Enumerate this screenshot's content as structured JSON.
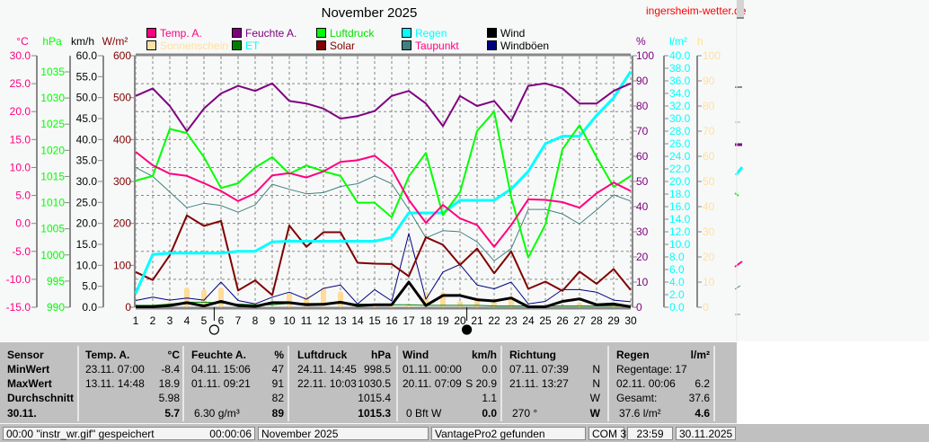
{
  "header": {
    "title": "November 2025",
    "site": "ingersheim-wetter.de"
  },
  "legend": [
    {
      "label": "Temp. A.",
      "color": "#ff0080",
      "text_color": "#ff0080"
    },
    {
      "label": "Feuchte A.",
      "color": "#800080",
      "text_color": "#800080"
    },
    {
      "label": "Luftdruck",
      "color": "#00ff00",
      "text_color": "#00e000"
    },
    {
      "label": "Regen",
      "color": "#00ffff",
      "text_color": "#00ffff"
    },
    {
      "label": "Wind",
      "color": "#000000",
      "text_color": "#000000"
    },
    {
      "label": "Sonnenschein",
      "color": "#ffe0a0",
      "text_color": "#ffe0a0"
    },
    {
      "label": "ET",
      "color": "#008000",
      "text_color": "#00ffff"
    },
    {
      "label": "Solar",
      "color": "#800000",
      "text_color": "#800000"
    },
    {
      "label": "Taupunkt",
      "color": "#408080",
      "text_color": "#ff0080"
    },
    {
      "label": "Windböen",
      "color": "#000080",
      "text_color": "#000000"
    }
  ],
  "chart_data": {
    "type": "line",
    "title": "November 2025",
    "x": [
      1,
      2,
      3,
      4,
      5,
      6,
      7,
      8,
      9,
      10,
      11,
      12,
      13,
      14,
      15,
      16,
      17,
      18,
      19,
      20,
      21,
      22,
      23,
      24,
      25,
      26,
      27,
      28,
      29,
      30
    ],
    "xlim": [
      1,
      30
    ],
    "axes": {
      "temp": {
        "unit": "°C",
        "color": "#ff0080",
        "range": [
          -15,
          30
        ],
        "ticks": [
          "30.0",
          "25.0",
          "20.0",
          "15.0",
          "10.0",
          "5.0",
          "0.0",
          "-5.0",
          "-10.0",
          "-15.0"
        ]
      },
      "press": {
        "unit": "hPa",
        "color": "#00ff00",
        "range": [
          990,
          1035
        ],
        "ticks": [
          "1035",
          "1030",
          "1025",
          "1020",
          "1015",
          "1010",
          "1005",
          "1000",
          "995",
          "990"
        ]
      },
      "wind": {
        "unit": "km/h",
        "color": "#000000",
        "range": [
          0,
          60
        ],
        "ticks": [
          "60.0",
          "55.0",
          "50.0",
          "45.0",
          "40.0",
          "35.0",
          "30.0",
          "25.0",
          "20.0",
          "15.0",
          "10.0",
          "5.0",
          "0.0"
        ]
      },
      "solar": {
        "unit": "W/m²",
        "color": "#800000",
        "range": [
          0,
          600
        ],
        "ticks": [
          "600",
          "500",
          "400",
          "300",
          "200",
          "100",
          "0"
        ]
      },
      "hum": {
        "unit": "%",
        "color": "#800080",
        "range": [
          0,
          100
        ],
        "ticks": [
          "100",
          "90",
          "80",
          "70",
          "60",
          "50",
          "40",
          "30",
          "20",
          "10",
          "0"
        ]
      },
      "rain": {
        "unit": "l/m²",
        "color": "#00ffff",
        "range": [
          0,
          40
        ],
        "ticks": [
          "40.0",
          "38.0",
          "36.0",
          "34.0",
          "32.0",
          "30.0",
          "28.0",
          "26.0",
          "24.0",
          "22.0",
          "20.0",
          "18.0",
          "16.0",
          "14.0",
          "12.0",
          "10.0",
          "8.0",
          "6.0",
          "4.0",
          "2.0",
          "0.0"
        ]
      },
      "sun": {
        "unit": "h",
        "color": "#ffe0a0",
        "range": [
          0,
          100
        ],
        "ticks": [
          "100",
          "90",
          "80",
          "70",
          "60",
          "50",
          "40",
          "30",
          "20",
          "10",
          "0"
        ]
      }
    },
    "series": [
      {
        "name": "Sonnenschein",
        "axis": "sun",
        "kind": "bar",
        "color": "#ffdc9a",
        "values": [
          0,
          0,
          2.1,
          7.9,
          7.1,
          7.9,
          0,
          0,
          0,
          5.9,
          4.5,
          7.9,
          6.3,
          0,
          1.3,
          0.7,
          1.3,
          6.1,
          6.1,
          2.5,
          4.0,
          2.5,
          4.5,
          0,
          0,
          0,
          1.9,
          0,
          1.0,
          0
        ]
      },
      {
        "name": "Taupunkt",
        "axis": "temp",
        "color": "#408080",
        "width": 1,
        "values": [
          10.0,
          8.4,
          5.6,
          2.8,
          3.6,
          3.2,
          2.0,
          3.3,
          7.0,
          6.1,
          5.3,
          5.5,
          6.6,
          7.1,
          8.5,
          7.1,
          2.5,
          -2.6,
          -1.3,
          -1.5,
          -3.3,
          -6.7,
          -4.5,
          2.5,
          2.5,
          1.7,
          -0.1,
          2.4,
          5.1,
          4.0
        ]
      },
      {
        "name": "Windböen",
        "axis": "wind",
        "color": "#000080",
        "width": 1,
        "values": [
          1.6,
          2.4,
          1.7,
          2.2,
          1.7,
          6.0,
          1.6,
          0.8,
          2.4,
          3.6,
          1.9,
          4.5,
          5.3,
          0.8,
          4.2,
          1.5,
          17.6,
          1.9,
          8.4,
          10.2,
          5.3,
          4.4,
          6.0,
          0.8,
          1.4,
          4.2,
          4.2,
          3.6,
          1.7,
          1.3
        ]
      },
      {
        "name": "ET",
        "axis": "rain",
        "color": "#008000",
        "width": 1,
        "values": [
          0.3,
          0.3,
          0.5,
          0.8,
          0.8,
          0.7,
          0.5,
          0.4,
          0.4,
          0.6,
          0.6,
          0.6,
          0.6,
          0.5,
          0.5,
          0.4,
          0.4,
          0.3,
          0.3,
          0.3,
          0.3,
          0.2,
          0.2,
          0.2,
          0.2,
          0.2,
          0.2,
          0.2,
          0.2,
          0.2
        ]
      },
      {
        "name": "Solar",
        "axis": "solar",
        "color": "#800000",
        "width": 2,
        "values": [
          84,
          65,
          124,
          219,
          194,
          206,
          40,
          64,
          29,
          195,
          144,
          179,
          179,
          106,
          104,
          103,
          74,
          167,
          149,
          101,
          140,
          81,
          133,
          44,
          61,
          39,
          85,
          56,
          91,
          41
        ]
      },
      {
        "name": "Regen",
        "axis": "rain",
        "color": "#00ffff",
        "width": 3,
        "values": [
          2.2,
          8.4,
          8.6,
          8.6,
          8.6,
          8.6,
          8.9,
          8.9,
          10.4,
          10.5,
          10.5,
          10.5,
          10.5,
          10.5,
          10.5,
          11.1,
          15.0,
          15.0,
          15.0,
          17.0,
          17.0,
          17.0,
          18.8,
          21.6,
          26.0,
          27.2,
          27.2,
          30.5,
          33.3,
          37.5
        ]
      },
      {
        "name": "Luftdruck",
        "axis": "press",
        "color": "#00ff00",
        "width": 2,
        "values": [
          1014.2,
          1015.1,
          1024.1,
          1023.3,
          1018.7,
          1012.8,
          1013.7,
          1016.7,
          1018.7,
          1015.5,
          1017.1,
          1016.0,
          1015.1,
          1010.0,
          1010.0,
          1007.2,
          1015.0,
          1019.5,
          1007.6,
          1012.0,
          1023.7,
          1027.4,
          1011.0,
          999.5,
          1005.8,
          1020.2,
          1024.8,
          1018.7,
          1013.0,
          1015.1
        ]
      },
      {
        "name": "Temp. A.",
        "axis": "temp",
        "color": "#ff0080",
        "width": 2,
        "values": [
          12.8,
          10.4,
          8.9,
          8.5,
          7.2,
          5.8,
          4.0,
          5.4,
          8.6,
          9.0,
          8.2,
          9.3,
          11.0,
          11.3,
          12.1,
          9.7,
          4.2,
          0.1,
          3.3,
          0.9,
          -0.3,
          -4.2,
          -0.3,
          4.3,
          4.2,
          3.8,
          2.8,
          5.4,
          7.3,
          5.8
        ]
      },
      {
        "name": "Feuchte A.",
        "axis": "hum",
        "color": "#800080",
        "width": 2,
        "values": [
          84,
          87,
          80,
          70,
          79,
          85,
          88,
          86,
          89,
          82,
          81,
          79,
          75,
          76,
          78,
          84,
          86,
          81,
          72,
          84,
          80,
          82,
          74,
          88,
          89,
          87,
          81,
          81,
          86,
          89
        ]
      },
      {
        "name": "Wind",
        "axis": "wind",
        "color": "#000000",
        "width": 3,
        "values": [
          0.1,
          0.1,
          0.4,
          1.1,
          0.3,
          1.4,
          0.4,
          0.2,
          1.1,
          1.1,
          0.6,
          0.7,
          1.2,
          0.4,
          0.6,
          0.6,
          6.0,
          0.4,
          2.8,
          2.8,
          1.8,
          1.5,
          2.2,
          0.1,
          0.1,
          1.4,
          2.0,
          0.6,
          0.8,
          0.1
        ]
      }
    ],
    "moon_phases": [
      {
        "day": 5.6,
        "phase": "full"
      },
      {
        "day": 20.4,
        "phase": "new"
      }
    ],
    "grid": true
  },
  "table": {
    "headers": [
      {
        "label": "Sensor",
        "unit": ""
      },
      {
        "label": "Temp. A.",
        "unit": "°C"
      },
      {
        "label": "Feuchte A.",
        "unit": "%"
      },
      {
        "label": "Luftdruck",
        "unit": "hPa"
      },
      {
        "label": "Wind",
        "unit": "km/h"
      },
      {
        "label": "Richtung",
        "unit": ""
      },
      {
        "label": "Regen",
        "unit": "l/m²"
      }
    ],
    "row_labels": [
      "MinWert",
      "MaxWert",
      "Durchschnitt",
      "30.11."
    ],
    "temp": [
      [
        "23.11.  07:00",
        "-8.4"
      ],
      [
        "13.11.  14:48",
        "18.9"
      ],
      [
        "",
        "5.98"
      ],
      [
        "",
        "5.7"
      ]
    ],
    "hum": [
      [
        "04.11.  15:06",
        "47"
      ],
      [
        "01.11.  09:21",
        "91"
      ],
      [
        "",
        "82"
      ],
      [
        "6.30 g/m³",
        "89"
      ]
    ],
    "press": [
      [
        "24.11.  14:45",
        "998.5"
      ],
      [
        "22.11.  10:03",
        "1030.5"
      ],
      [
        "",
        "1015.4"
      ],
      [
        "",
        "1015.3"
      ]
    ],
    "wind": [
      [
        "01.11.  00:00",
        "0.0"
      ],
      [
        "20.11.  07:09",
        "S 20.9"
      ],
      [
        "",
        "1.1"
      ],
      [
        "0 Bft W",
        "0.0"
      ]
    ],
    "dir": [
      [
        "07.11.  07:39",
        "N"
      ],
      [
        "21.11.  13:27",
        "N"
      ],
      [
        "",
        "W"
      ],
      [
        "270 °",
        "W"
      ]
    ],
    "rain": [
      [
        "Regentage: 17",
        ""
      ],
      [
        "02.11.  00:06",
        "6.2"
      ],
      [
        "Gesamt:",
        "37.6"
      ],
      [
        "37.6 l/m²",
        "4.6"
      ]
    ]
  },
  "statusbar": {
    "message": "00:00  \"instr_wr.gif\"  gespeichert",
    "elapsed": "00:00:06",
    "period": "November 2025",
    "station": "VantagePro2 gefunden",
    "port": "COM 3",
    "time": "23:59",
    "date": "30.11.2025"
  }
}
